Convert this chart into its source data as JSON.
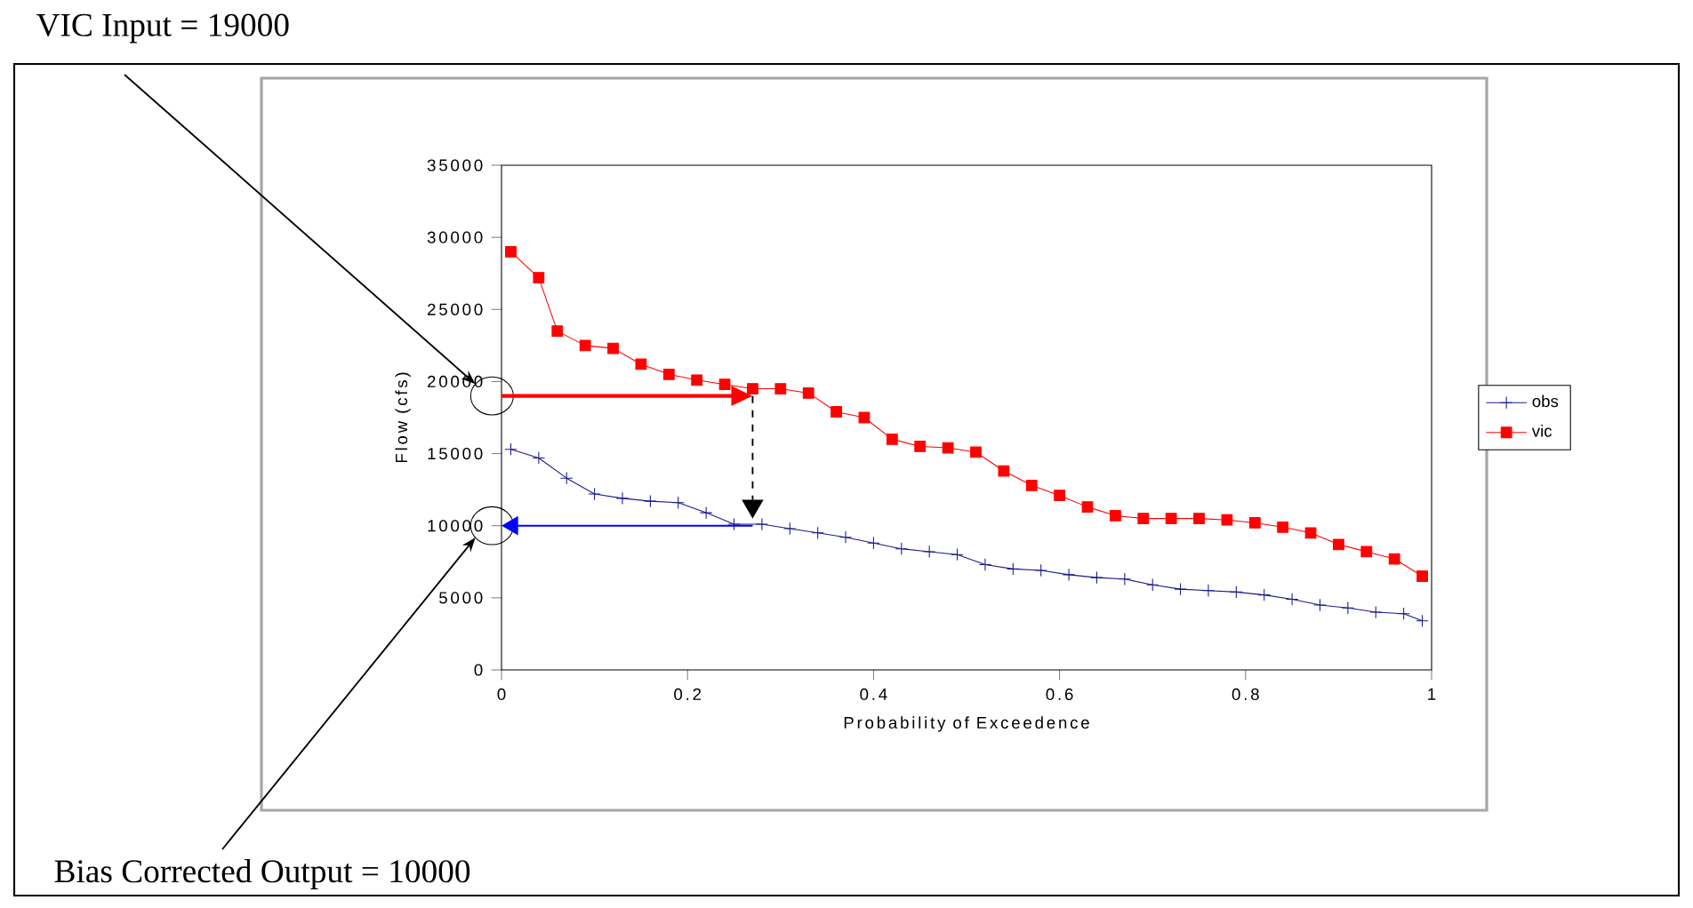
{
  "chart_data": {
    "type": "line",
    "xlabel": "Probability of Exceedence",
    "ylabel": "Flow (cfs)",
    "xlim": [
      0,
      1
    ],
    "xticks": [
      0,
      0.2,
      0.4,
      0.6,
      0.8,
      1
    ],
    "ylim": [
      0,
      35000
    ],
    "yticks": [
      0,
      5000,
      10000,
      15000,
      20000,
      25000,
      30000,
      35000
    ],
    "legend": "right",
    "grid": false,
    "series": [
      {
        "name": "obs",
        "color": "#1a1a8c",
        "marker": "cross",
        "x": [
          0.01,
          0.04,
          0.07,
          0.1,
          0.13,
          0.16,
          0.19,
          0.22,
          0.25,
          0.28,
          0.31,
          0.34,
          0.37,
          0.4,
          0.43,
          0.46,
          0.49,
          0.52,
          0.55,
          0.58,
          0.61,
          0.64,
          0.67,
          0.7,
          0.73,
          0.76,
          0.79,
          0.82,
          0.85,
          0.88,
          0.91,
          0.94,
          0.97,
          0.99
        ],
        "values": [
          15300,
          14700,
          13300,
          12200,
          11900,
          11700,
          11600,
          10900,
          10100,
          10100,
          9800,
          9500,
          9200,
          8800,
          8400,
          8200,
          8000,
          7300,
          7000,
          6900,
          6600,
          6400,
          6300,
          5900,
          5600,
          5500,
          5400,
          5200,
          4900,
          4500,
          4300,
          4000,
          3900,
          3400
        ]
      },
      {
        "name": "vic",
        "color": "#ff0000",
        "marker": "square",
        "x": [
          0.01,
          0.04,
          0.06,
          0.09,
          0.12,
          0.15,
          0.18,
          0.21,
          0.24,
          0.27,
          0.3,
          0.33,
          0.36,
          0.39,
          0.42,
          0.45,
          0.48,
          0.51,
          0.54,
          0.57,
          0.6,
          0.63,
          0.66,
          0.69,
          0.72,
          0.75,
          0.78,
          0.81,
          0.84,
          0.87,
          0.9,
          0.93,
          0.96,
          0.99
        ],
        "values": [
          29000,
          27200,
          23500,
          22500,
          22300,
          21200,
          20500,
          20100,
          19800,
          19500,
          19500,
          19200,
          17900,
          17500,
          16000,
          15500,
          15400,
          15100,
          13800,
          12800,
          12100,
          11300,
          10700,
          10500,
          10500,
          10500,
          10400,
          10200,
          9900,
          9500,
          8700,
          8200,
          7700,
          6500
        ]
      }
    ],
    "ref_lines": [
      {
        "axis": "y",
        "value": 19000,
        "color": "#ff0000"
      },
      {
        "axis": "x",
        "value": 0.27,
        "color": "#000000",
        "line_style": "dashed"
      },
      {
        "axis": "y",
        "value": 10000,
        "color": "#0000ff"
      }
    ],
    "annotations": [
      "VIC Input = 19000",
      "Bias Corrected Output = 10000"
    ]
  }
}
